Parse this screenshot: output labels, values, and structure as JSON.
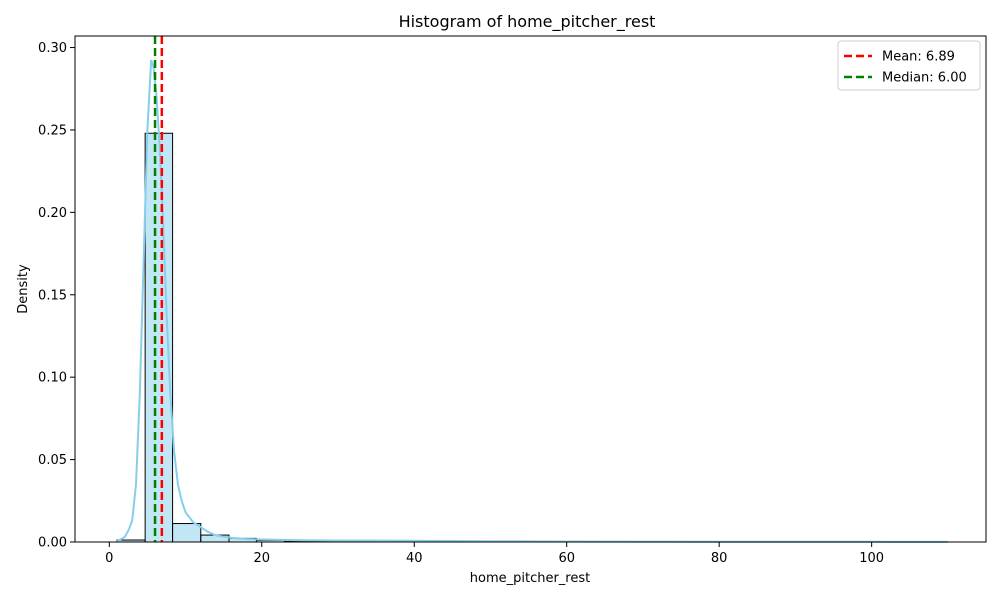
{
  "chart_data": {
    "type": "histogram",
    "title": "Histogram of home_pitcher_rest",
    "xlabel": "home_pitcher_rest",
    "ylabel": "Density",
    "xlim": [
      -4.5,
      115
    ],
    "ylim": [
      0,
      0.307
    ],
    "xticks": [
      0,
      20,
      40,
      60,
      80,
      100
    ],
    "xtick_labels": [
      "0",
      "20",
      "40",
      "60",
      "80",
      "100"
    ],
    "yticks": [
      0,
      0.05,
      0.1,
      0.15,
      0.2,
      0.25,
      0.3
    ],
    "ytick_labels": [
      "0.00",
      "0.05",
      "0.10",
      "0.15",
      "0.20",
      "0.25",
      "0.30"
    ],
    "grid": false,
    "legend_placement": "top-right",
    "bar_color": "#87ceeb",
    "bar_edge_color": "#000000",
    "kde_color": "#87ceeb",
    "bins": [
      {
        "x0": 1.0,
        "x1": 4.7,
        "density": 0.0012
      },
      {
        "x0": 4.7,
        "x1": 8.3,
        "density": 0.248
      },
      {
        "x0": 8.3,
        "x1": 12.0,
        "density": 0.0112
      },
      {
        "x0": 12.0,
        "x1": 15.7,
        "density": 0.0042
      },
      {
        "x0": 15.7,
        "x1": 19.3,
        "density": 0.0022
      },
      {
        "x0": 19.3,
        "x1": 23.0,
        "density": 0.001
      },
      {
        "x0": 23.0,
        "x1": 26.7,
        "density": 0.0006
      },
      {
        "x0": 26.7,
        "x1": 30.3,
        "density": 0.0004
      },
      {
        "x0": 30.3,
        "x1": 34.0,
        "density": 0.0003
      },
      {
        "x0": 34.0,
        "x1": 37.7,
        "density": 0.0002
      },
      {
        "x0": 37.7,
        "x1": 41.3,
        "density": 0.0002
      },
      {
        "x0": 41.3,
        "x1": 45.0,
        "density": 0.00015
      },
      {
        "x0": 45.0,
        "x1": 48.7,
        "density": 0.0001
      },
      {
        "x0": 48.7,
        "x1": 52.3,
        "density": 0.0001
      },
      {
        "x0": 52.3,
        "x1": 56.0,
        "density": 5e-05
      },
      {
        "x0": 56.0,
        "x1": 59.7,
        "density": 5e-05
      },
      {
        "x0": 59.7,
        "x1": 63.3,
        "density": 5e-05
      },
      {
        "x0": 63.3,
        "x1": 67.0,
        "density": 3e-05
      },
      {
        "x0": 67.0,
        "x1": 70.7,
        "density": 3e-05
      },
      {
        "x0": 70.7,
        "x1": 74.3,
        "density": 3e-05
      },
      {
        "x0": 74.3,
        "x1": 78.0,
        "density": 2e-05
      },
      {
        "x0": 78.0,
        "x1": 81.7,
        "density": 2e-05
      },
      {
        "x0": 81.7,
        "x1": 85.3,
        "density": 2e-05
      },
      {
        "x0": 85.3,
        "x1": 89.0,
        "density": 2e-05
      },
      {
        "x0": 89.0,
        "x1": 92.7,
        "density": 2e-05
      },
      {
        "x0": 92.7,
        "x1": 96.3,
        "density": 1e-05
      },
      {
        "x0": 96.3,
        "x1": 100.0,
        "density": 1e-05
      },
      {
        "x0": 100.0,
        "x1": 103.7,
        "density": 1e-05
      },
      {
        "x0": 103.7,
        "x1": 107.3,
        "density": 1e-05
      },
      {
        "x0": 107.3,
        "x1": 111.0,
        "density": 1e-05
      }
    ],
    "kde": {
      "x": [
        1,
        2,
        2.5,
        3,
        3.5,
        4,
        4.5,
        5,
        5.5,
        5.8,
        6.2,
        6.6,
        7,
        7.5,
        8,
        8.5,
        9,
        9.5,
        10,
        11,
        12,
        13,
        14,
        16,
        18,
        20,
        25,
        30,
        40,
        50,
        60,
        80,
        100,
        110
      ],
      "y": [
        0.0003,
        0.003,
        0.007,
        0.013,
        0.035,
        0.09,
        0.17,
        0.25,
        0.2925,
        0.288,
        0.27,
        0.24,
        0.2,
        0.14,
        0.09,
        0.055,
        0.035,
        0.025,
        0.018,
        0.012,
        0.009,
        0.006,
        0.004,
        0.0025,
        0.0018,
        0.0015,
        0.0011,
        0.0009,
        0.0007,
        0.0005,
        0.0003,
        0.0002,
        0.0001,
        5e-05
      ]
    },
    "reference_lines": [
      {
        "label": "Mean: 6.89",
        "x": 6.89,
        "color": "#ff0000"
      },
      {
        "label": "Median: 6.00",
        "x": 6.0,
        "color": "#008000"
      }
    ]
  }
}
